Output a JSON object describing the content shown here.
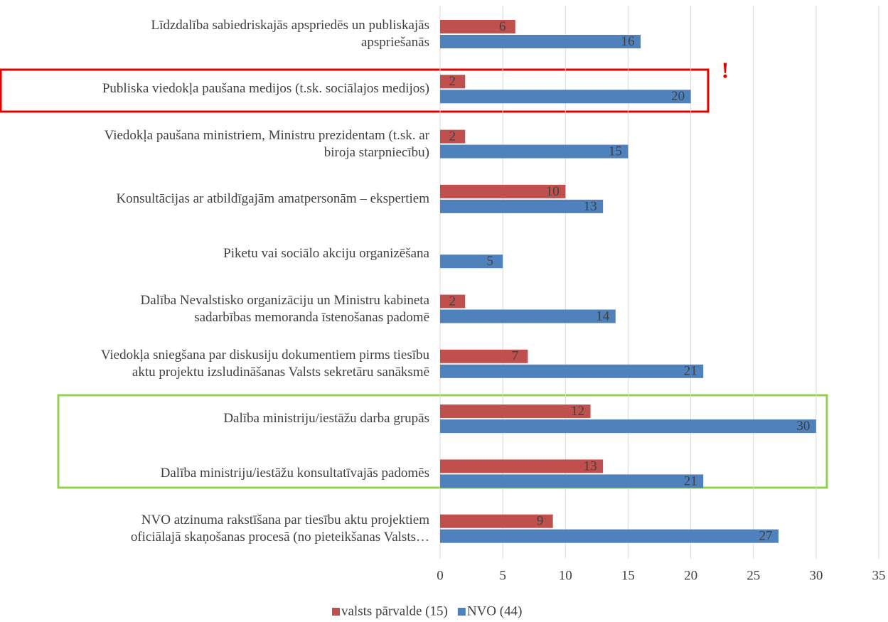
{
  "chart_data": {
    "type": "bar",
    "orientation": "horizontal",
    "categories": [
      "Līdzdalība sabiedriskajās apspriedēs un publiskajās\napspriešanās",
      "Publiska viedokļa paušana medijos (t.sk. sociālajos medijos)",
      "Viedokļa paušana ministriem, Ministru prezidentam (t.sk. ar\nbiroja starpniecību)",
      "Konsultācijas ar atbildīgajām amatpersonām – ekspertiem",
      "Piketu vai sociālo akciju organizēšana",
      "Dalība Nevalstisko organizāciju un Ministru kabineta\nsadarbības memoranda īstenošanas padomē",
      "Viedokļa sniegšana par diskusiju dokumentiem pirms tiesību\naktu projektu izsludināšanas Valsts sekretāru sanāksmē",
      "Dalība ministriju/iestāžu darba grupās",
      "Dalība ministriju/iestāžu konsultatīvajās padomēs",
      "NVO atzinuma rakstīšana par tiesību aktu projektiem\noficiālajā skaņošanas procesā (no pieteikšanas Valsts…"
    ],
    "series": [
      {
        "name": "valsts pārvalde (15)",
        "color": "#c0504d",
        "values": [
          6,
          2,
          2,
          10,
          null,
          2,
          7,
          12,
          13,
          9
        ]
      },
      {
        "name": "NVO (44)",
        "color": "#4f81bd",
        "values": [
          16,
          20,
          15,
          13,
          5,
          14,
          21,
          30,
          21,
          27
        ]
      }
    ],
    "xlim": [
      0,
      35
    ],
    "xticks": [
      0,
      5,
      10,
      15,
      20,
      25,
      30,
      35
    ],
    "grid": true,
    "legend": "bottom",
    "annotation": "!"
  }
}
